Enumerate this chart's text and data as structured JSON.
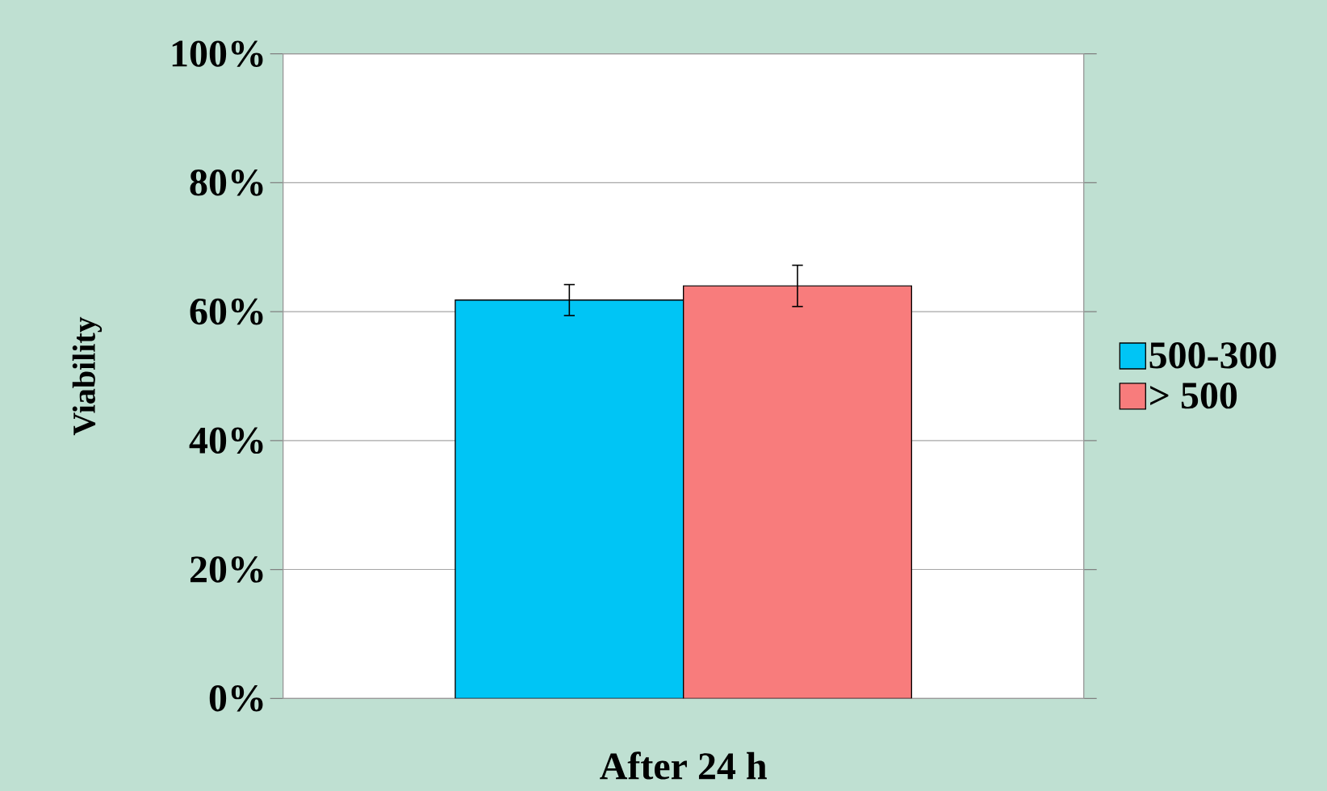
{
  "chart_data": {
    "type": "bar",
    "ylabel": "Viability",
    "categories": [
      "After 24 h"
    ],
    "series": [
      {
        "name": "500-300",
        "color": "#00c5f5",
        "values": [
          61.8
        ],
        "errors": [
          2.4
        ]
      },
      {
        "name": "> 500",
        "color": "#f87c7c",
        "values": [
          64.0
        ],
        "errors": [
          3.2
        ]
      }
    ],
    "ylim": [
      0,
      100
    ],
    "yticks": [
      {
        "value": 0,
        "label": "0%"
      },
      {
        "value": 20,
        "label": "20%"
      },
      {
        "value": 40,
        "label": "40%"
      },
      {
        "value": 60,
        "label": "60%"
      },
      {
        "value": 80,
        "label": "80%"
      },
      {
        "value": 100,
        "label": "100%"
      }
    ],
    "grid": "y",
    "legend": "right"
  }
}
